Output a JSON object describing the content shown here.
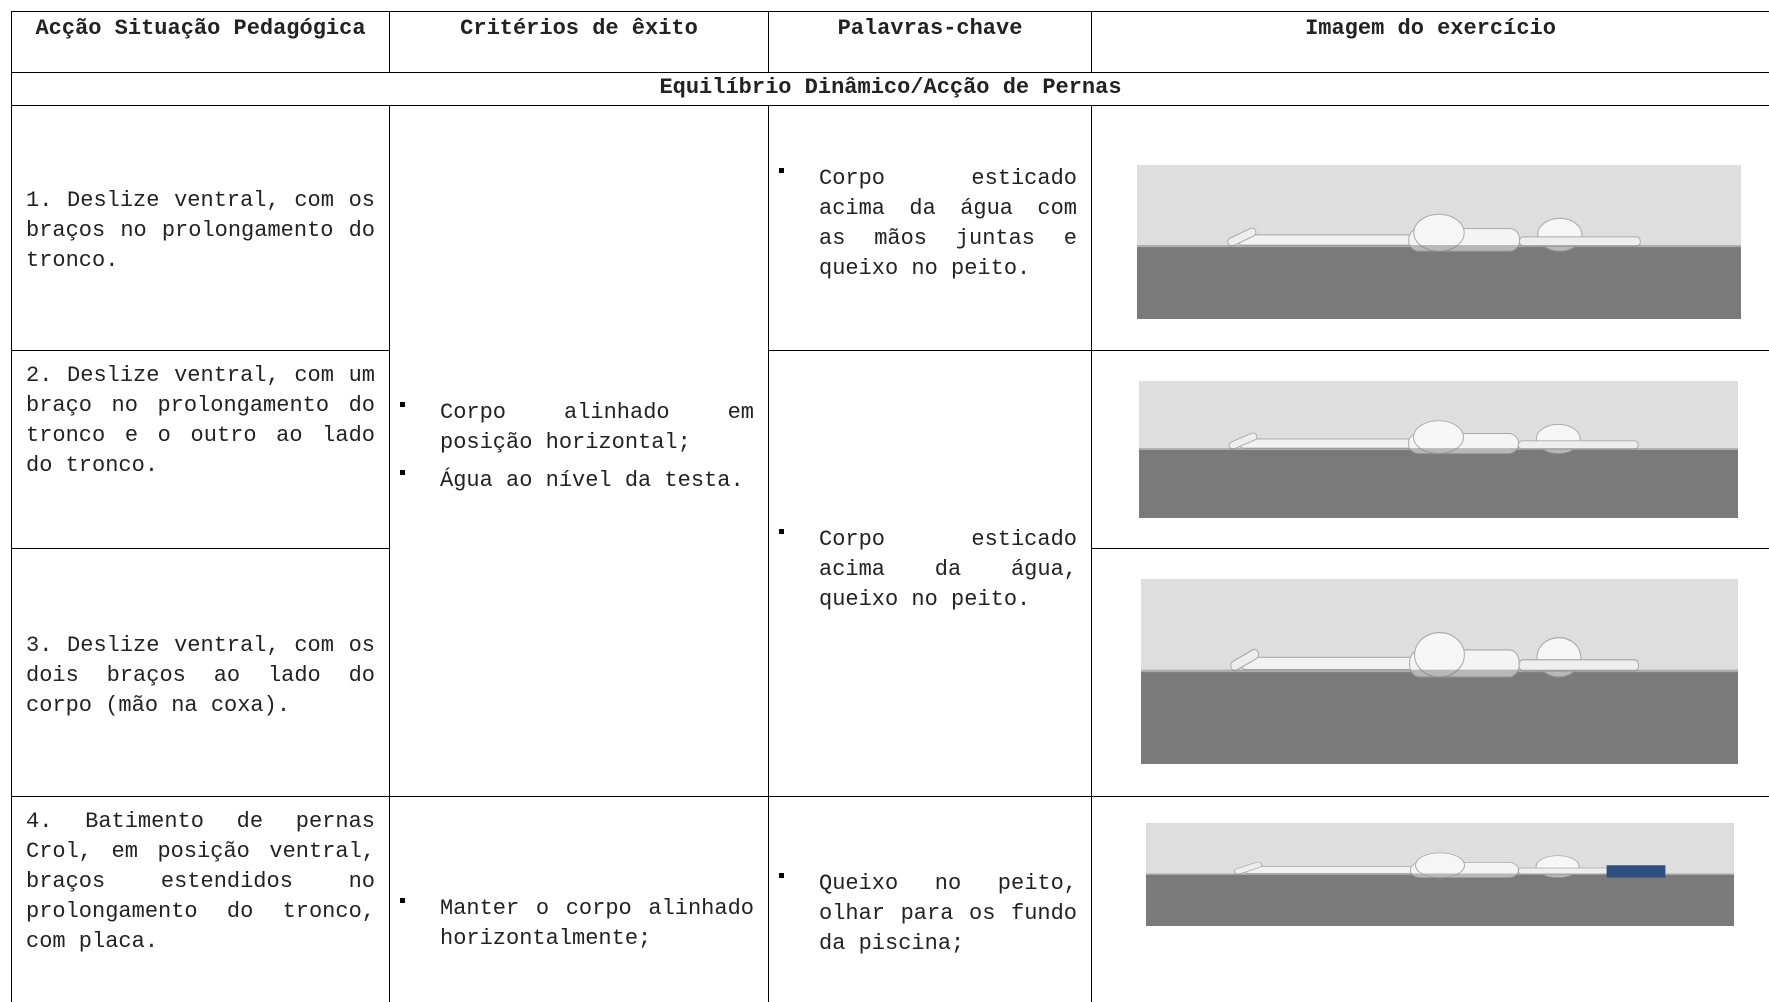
{
  "table": {
    "headers": [
      "Acção Situação Pedagógica",
      "Critérios de êxito",
      "Palavras-chave",
      "Imagem do exercício"
    ],
    "section": "Equilíbrio Dinâmico/Acção de Pernas",
    "rows": [
      "1. Deslize ventral, com os braços no prolongamento do tronco.",
      "2. Deslize ventral, com um braço no prolongamento do tronco e o outro ao lado do tronco.",
      "3. Deslize ventral, com os dois braços ao lado do corpo (mão na coxa).",
      "4. Batimento de pernas Crol, em posição ventral, braços estendidos no prolongamento do tronco, com placa."
    ],
    "criteria": [
      [
        "Corpo alinhado em posição horizontal;",
        "Água ao nível da testa."
      ],
      [
        "Manter o corpo alinhado horizontalmente;"
      ]
    ],
    "keywords": [
      [
        "Corpo esticado acima da água com as mãos juntas e queixo no peito."
      ],
      [
        "Corpo esticado acima da água, queixo no peito."
      ],
      [
        "Queixo no peito, olhar para os fundo da piscina;"
      ]
    ]
  }
}
